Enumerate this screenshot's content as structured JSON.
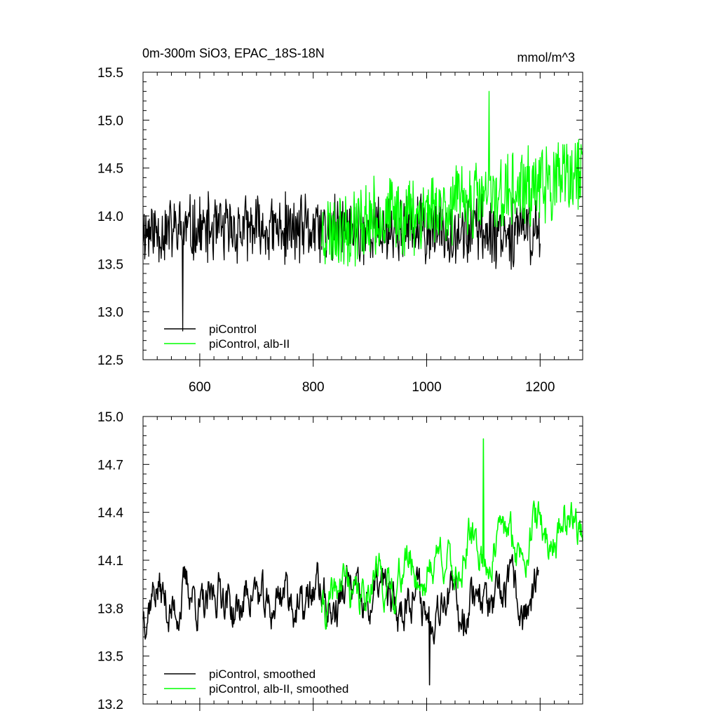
{
  "chart_data": [
    {
      "type": "line",
      "title": "0m-300m SiO3, EPAC_18S-18N",
      "units": "mmol/m^3",
      "xlim": [
        500,
        1275
      ],
      "ylim": [
        12.5,
        15.5
      ],
      "xticks": [
        600,
        800,
        1000,
        1200
      ],
      "yticks": [
        12.5,
        13.0,
        13.5,
        14.0,
        14.5,
        15.0,
        15.5
      ],
      "ytick_labels": [
        "12.5",
        "13.0",
        "13.5",
        "14.0",
        "14.5",
        "15.0",
        "15.5"
      ],
      "xtick_labels": [
        "600",
        "800",
        "1000",
        "1200"
      ],
      "legend_position": "bottom-left",
      "series": [
        {
          "name": "piControl",
          "color": "#000000",
          "x_start": 500,
          "x_end": 1200,
          "mean": 13.85,
          "amplitude": 0.35,
          "seed": 11,
          "dip": {
            "x": 570,
            "y": 12.8
          }
        },
        {
          "name": "piControl, alb-II",
          "color": "#00ff00",
          "x_start": 815,
          "x_end": 1275,
          "mean_start": 13.85,
          "mean_end": 14.4,
          "amplitude": 0.4,
          "seed": 23,
          "peak": {
            "x": 1110,
            "y": 15.3
          }
        }
      ]
    },
    {
      "type": "line",
      "xlim": [
        500,
        1275
      ],
      "ylim": [
        13.2,
        15.0
      ],
      "xticks": [
        600,
        800,
        1000,
        1200
      ],
      "yticks": [
        13.2,
        13.5,
        13.8,
        14.1,
        14.4,
        14.7,
        15.0
      ],
      "ytick_labels": [
        "13.2",
        "13.5",
        "13.8",
        "14.1",
        "14.4",
        "14.7",
        "15.0"
      ],
      "legend_position": "bottom-left",
      "series": [
        {
          "name": "piControl, smoothed",
          "color": "#000000",
          "x_start": 500,
          "x_end": 1197,
          "mean": 13.85,
          "amplitude": 0.18,
          "seed": 37,
          "dip": {
            "x": 1005,
            "y": 13.32
          }
        },
        {
          "name": "piControl, alb-II, smoothed",
          "color": "#00ff00",
          "x_start": 815,
          "x_end": 1275,
          "mean_start": 13.85,
          "mean_end": 14.35,
          "amplitude": 0.16,
          "seed": 41,
          "peak": {
            "x": 1100,
            "y": 14.86
          }
        }
      ]
    }
  ]
}
